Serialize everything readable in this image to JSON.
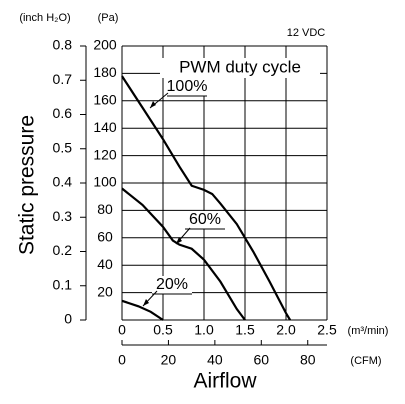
{
  "chart_data": {
    "type": "line",
    "title": "PWM duty cycle",
    "subtitle": "12 VDC",
    "y_label": "Static pressure",
    "x_label": "Airflow",
    "y_unit": "(Pa)",
    "y2_unit": "(inch H₂O)",
    "x_unit": "(m³/min)",
    "x2_unit": "(CFM)",
    "xlim": [
      0,
      2.5
    ],
    "xticks": [
      0,
      0.5,
      {
        "value": 1.0,
        "label": "1.0"
      },
      1.5,
      {
        "value": 2.0,
        "label": "2.0"
      },
      2.5
    ],
    "x2lim": [
      0,
      88.3
    ],
    "x2ticks": [
      0,
      20,
      40,
      60,
      80
    ],
    "ylim": [
      0,
      200
    ],
    "yticks": [
      20,
      40,
      60,
      80,
      100,
      120,
      140,
      160,
      180,
      200
    ],
    "y2lim": [
      0,
      0.8
    ],
    "y2ticks": [
      0,
      0.1,
      0.2,
      0.3,
      0.4,
      0.5,
      0.6,
      0.7,
      0.8
    ],
    "grid": true,
    "series": [
      {
        "name": "100%",
        "color": "#000000",
        "x": [
          0,
          0.25,
          0.5,
          0.7,
          0.85,
          1.0,
          1.1,
          1.2,
          1.4,
          1.6,
          1.8,
          2.0,
          2.05
        ],
        "values": [
          178,
          155,
          132,
          112,
          98,
          95,
          92,
          85,
          70,
          50,
          28,
          5,
          0
        ]
      },
      {
        "name": "60%",
        "color": "#000000",
        "x": [
          0,
          0.25,
          0.5,
          0.62,
          0.7,
          0.85,
          1.0,
          1.2,
          1.4,
          1.5
        ],
        "values": [
          96,
          84,
          68,
          58,
          55,
          52,
          44,
          28,
          8,
          0
        ]
      },
      {
        "name": "20%",
        "color": "#000000",
        "x": [
          0,
          0.2,
          0.35,
          0.45,
          0.5
        ],
        "values": [
          14,
          10,
          6,
          2,
          0
        ]
      }
    ]
  }
}
